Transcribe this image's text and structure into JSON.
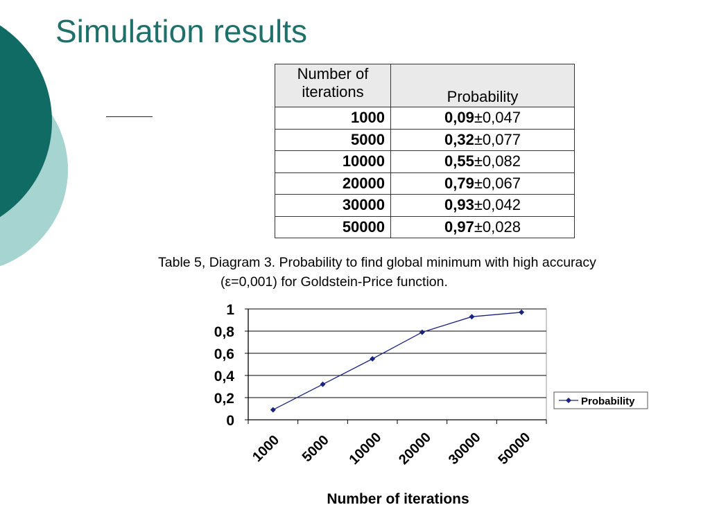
{
  "slide": {
    "title": "Simulation results",
    "colors": {
      "title": "#1f6f6a",
      "circle_dark": "#0f6b64",
      "circle_light": "#a6d4d0",
      "series": "#1a237e"
    }
  },
  "table": {
    "headers": [
      "Number of iterations",
      "Probability"
    ],
    "rows": [
      {
        "iterations": "1000",
        "mean": "0,09",
        "pm": "±",
        "err": "0,047"
      },
      {
        "iterations": "5000",
        "mean": "0,32",
        "pm": "±",
        "err": "0,077"
      },
      {
        "iterations": "10000",
        "mean": "0,55",
        "pm": "±",
        "err": "0,082"
      },
      {
        "iterations": "20000",
        "mean": "0,79",
        "pm": "±",
        "err": "0,067"
      },
      {
        "iterations": "30000",
        "mean": "0,93",
        "pm": "±",
        "err": "0,042"
      },
      {
        "iterations": "50000",
        "mean": "0,97",
        "pm": "±",
        "err": "0,028"
      }
    ]
  },
  "caption": {
    "line1": "Table 5, Diagram 3. Probability to find global minimum with high accuracy",
    "line2": "(ε=0,001) for Goldstein-Price function."
  },
  "chart_data": {
    "type": "line",
    "categories": [
      "1000",
      "5000",
      "10000",
      "20000",
      "30000",
      "50000"
    ],
    "series": [
      {
        "name": "Probability",
        "values": [
          0.09,
          0.32,
          0.55,
          0.79,
          0.93,
          0.97
        ]
      }
    ],
    "xlabel": "Number of iterations",
    "ylabel": "",
    "ylim": [
      0,
      1
    ],
    "yticks": [
      0,
      0.2,
      0.4,
      0.6,
      0.8,
      1
    ],
    "ytick_labels": [
      "0",
      "0,2",
      "0,4",
      "0,6",
      "0,8",
      "1"
    ],
    "grid": true,
    "legend": "right",
    "marker": "diamond"
  }
}
